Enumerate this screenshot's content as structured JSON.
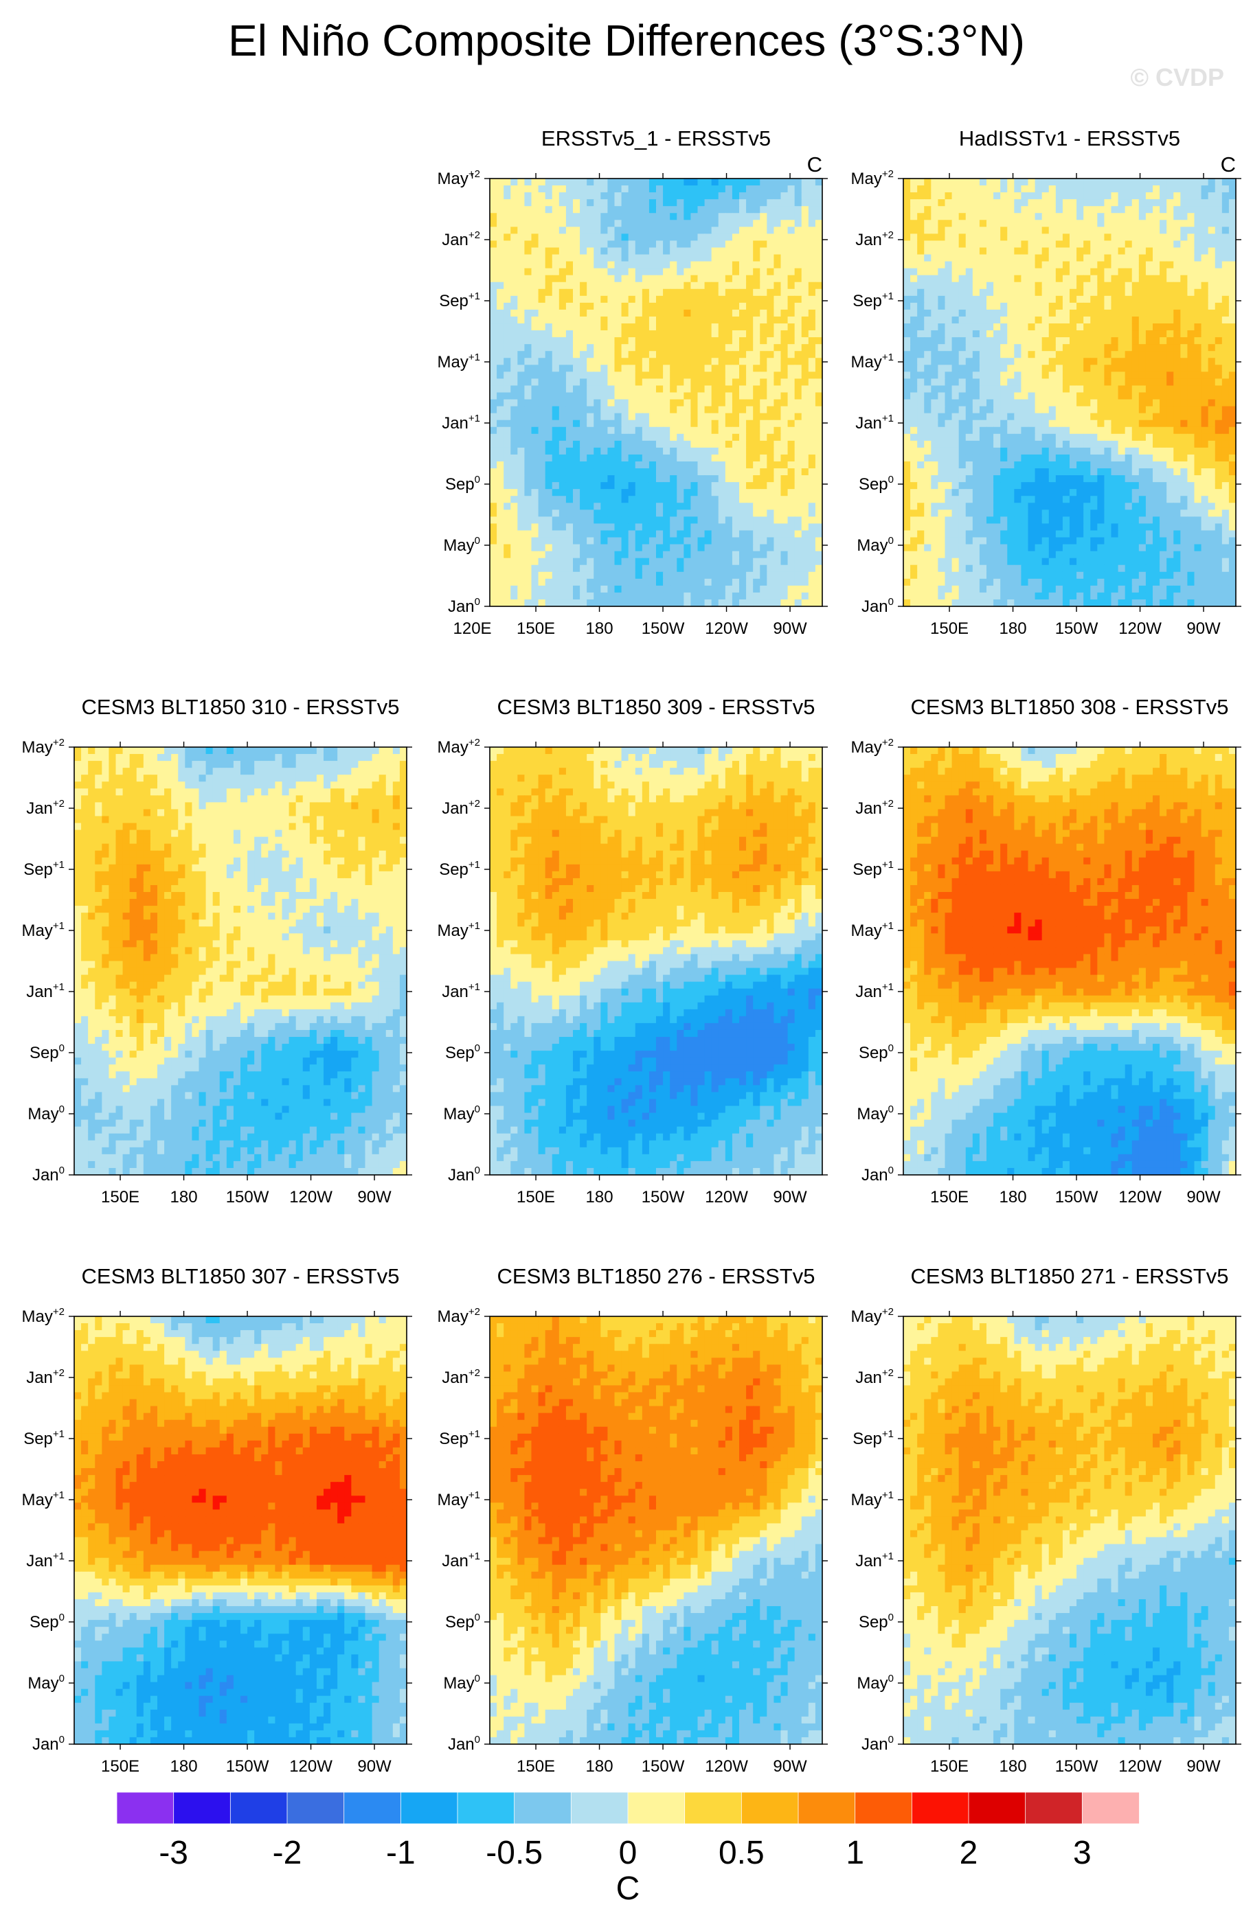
{
  "title": "El Niño Composite Differences (3°S:3°N)",
  "watermark": "© CVDP",
  "chart_data": {
    "type": "heatmap",
    "description_units": "C",
    "panels": [
      {
        "title": "ERSSTv5_1 - ERSSTv5",
        "units": "C",
        "xticks": [
          "120E",
          "150E",
          "180",
          "150W",
          "120W",
          "90W"
        ],
        "field": [
          [
            0.1,
            -0.1,
            -0.3,
            -0.8,
            -0.6,
            -0.2
          ],
          [
            0.2,
            0.2,
            -0.4,
            -0.3,
            0.2,
            0.1
          ],
          [
            -0.1,
            0.3,
            0.2,
            0.4,
            0.3,
            0.2
          ],
          [
            -0.2,
            -0.3,
            0.3,
            0.4,
            0.2,
            0.3
          ],
          [
            -0.2,
            -0.5,
            -0.2,
            0.2,
            0.3,
            0.1
          ],
          [
            0.2,
            -0.6,
            -0.8,
            -0.5,
            0.3,
            0.2
          ],
          [
            0.3,
            -0.1,
            -0.5,
            -0.5,
            -0.3,
            -0.1
          ],
          [
            0.1,
            -0.1,
            -0.4,
            -0.3,
            -0.2,
            0.2
          ]
        ]
      },
      {
        "title": "HadISSTv1 - ERSSTv5",
        "units": "C",
        "xticks": [
          "150E",
          "180",
          "150W",
          "120W",
          "90W"
        ],
        "field": [
          [
            0.3,
            0.1,
            -0.1,
            -0.2,
            -0.1,
            -0.3
          ],
          [
            0.3,
            0.2,
            0.2,
            0.2,
            0.1,
            -0.2
          ],
          [
            -0.3,
            -0.1,
            0.2,
            0.3,
            0.4,
            0.2
          ],
          [
            -0.3,
            -0.3,
            0.2,
            0.5,
            0.7,
            0.4
          ],
          [
            -0.1,
            -0.3,
            -0.1,
            0.3,
            0.6,
            0.9
          ],
          [
            0.4,
            -0.3,
            -0.9,
            -0.8,
            -0.2,
            0.4
          ],
          [
            0.3,
            -0.2,
            -0.8,
            -0.7,
            -0.5,
            -0.3
          ],
          [
            0.2,
            -0.1,
            -0.4,
            -0.5,
            -0.5,
            -0.3
          ]
        ]
      },
      {
        "title": "CESM3 BLT1850 310 - ERSSTv5",
        "units": "",
        "xticks": [
          "150E",
          "180",
          "150W",
          "120W",
          "90W"
        ],
        "field": [
          [
            0.2,
            0.2,
            -0.5,
            -0.4,
            -0.3,
            0.1
          ],
          [
            0.3,
            0.4,
            0.1,
            0.2,
            0.4,
            0.5
          ],
          [
            0.3,
            0.8,
            0.2,
            -0.2,
            0.3,
            0.2
          ],
          [
            0.2,
            0.9,
            0.3,
            0.1,
            -0.2,
            0.1
          ],
          [
            0.1,
            0.6,
            0.2,
            0.3,
            0.3,
            -0.3
          ],
          [
            -0.2,
            0.2,
            -0.3,
            -0.6,
            -0.9,
            -0.2
          ],
          [
            -0.3,
            -0.2,
            -0.5,
            -0.7,
            -0.6,
            -0.3
          ],
          [
            -0.1,
            -0.3,
            -0.5,
            -0.4,
            -0.3,
            0.1
          ]
        ]
      },
      {
        "title": "CESM3 BLT1850 309 - ERSSTv5",
        "units": "",
        "xticks": [
          "150E",
          "180",
          "150W",
          "120W",
          "90W"
        ],
        "field": [
          [
            0.3,
            0.4,
            0.0,
            -0.3,
            0.2,
            0.1
          ],
          [
            0.4,
            0.6,
            0.3,
            0.4,
            0.7,
            0.5
          ],
          [
            0.3,
            0.8,
            0.6,
            0.5,
            0.8,
            0.4
          ],
          [
            0.2,
            0.7,
            0.4,
            0.2,
            0.3,
            -0.2
          ],
          [
            -0.2,
            0.1,
            -0.4,
            -0.6,
            -0.9,
            -1.0
          ],
          [
            -0.3,
            -0.6,
            -0.9,
            -1.2,
            -1.4,
            -0.6
          ],
          [
            -0.2,
            -0.7,
            -1.0,
            -0.9,
            -0.5,
            -0.3
          ],
          [
            -0.1,
            -0.5,
            -0.6,
            -0.4,
            -0.3,
            -0.1
          ]
        ]
      },
      {
        "title": "CESM3 BLT1850 308 - ERSSTv5",
        "units": "",
        "xticks": [
          "150E",
          "180",
          "150W",
          "120W",
          "90W"
        ],
        "field": [
          [
            0.4,
            0.5,
            -0.3,
            0.2,
            0.4,
            0.2
          ],
          [
            0.6,
            0.9,
            0.6,
            0.7,
            0.8,
            0.6
          ],
          [
            0.7,
            1.1,
            1.0,
            0.9,
            1.2,
            0.6
          ],
          [
            0.6,
            1.3,
            1.6,
            1.1,
            1.0,
            0.9
          ],
          [
            0.4,
            0.9,
            0.7,
            0.8,
            0.6,
            1.0
          ],
          [
            0.2,
            0.3,
            -0.4,
            -0.6,
            -0.5,
            0.2
          ],
          [
            0.1,
            -0.3,
            -0.8,
            -0.9,
            -1.1,
            -0.3
          ],
          [
            0.0,
            -0.6,
            -0.7,
            -0.9,
            -1.3,
            0.1
          ]
        ]
      },
      {
        "title": "CESM3 BLT1850 307 - ERSSTv5",
        "units": "",
        "xticks": [
          "150E",
          "180",
          "150W",
          "120W",
          "90W"
        ],
        "field": [
          [
            0.2,
            0.1,
            -0.6,
            -0.4,
            -0.2,
            0.2
          ],
          [
            0.4,
            0.6,
            0.2,
            0.3,
            0.4,
            0.3
          ],
          [
            0.6,
            0.9,
            0.9,
            1.0,
            1.1,
            0.9
          ],
          [
            0.7,
            1.2,
            1.6,
            1.1,
            1.7,
            1.0
          ],
          [
            0.3,
            0.8,
            0.9,
            0.9,
            1.1,
            1.2
          ],
          [
            -0.2,
            -0.3,
            -0.8,
            -0.7,
            -0.9,
            -0.2
          ],
          [
            -0.4,
            -0.8,
            -1.0,
            -0.9,
            -0.7,
            -0.3
          ],
          [
            -0.3,
            -0.7,
            -0.9,
            -0.8,
            -0.7,
            -0.2
          ]
        ]
      },
      {
        "title": "CESM3 BLT1850 276 - ERSSTv5",
        "units": "",
        "xticks": [
          "150E",
          "180",
          "150W",
          "120W",
          "90W"
        ],
        "field": [
          [
            0.5,
            0.7,
            0.3,
            0.4,
            0.5,
            0.3
          ],
          [
            0.6,
            0.9,
            0.7,
            0.8,
            0.9,
            0.4
          ],
          [
            0.8,
            1.2,
            0.9,
            0.8,
            1.1,
            0.5
          ],
          [
            0.8,
            1.2,
            1.0,
            0.9,
            0.8,
            -0.1
          ],
          [
            0.4,
            1.0,
            0.8,
            0.5,
            -0.2,
            -0.3
          ],
          [
            0.2,
            0.6,
            0.1,
            -0.4,
            -0.6,
            -0.4
          ],
          [
            0.0,
            0.2,
            -0.4,
            -0.7,
            -0.6,
            -0.3
          ],
          [
            0.0,
            -0.2,
            -0.5,
            -0.5,
            -0.4,
            -0.2
          ]
        ]
      },
      {
        "title": "CESM3 BLT1850 271 - ERSSTv5",
        "units": "",
        "xticks": [
          "150E",
          "180",
          "150W",
          "120W",
          "90W"
        ],
        "field": [
          [
            0.1,
            0.3,
            -0.3,
            -0.2,
            0.2,
            0.1
          ],
          [
            0.3,
            0.6,
            0.3,
            0.4,
            0.5,
            0.2
          ],
          [
            0.4,
            0.9,
            0.7,
            0.5,
            0.8,
            0.3
          ],
          [
            0.4,
            0.8,
            0.6,
            0.4,
            0.4,
            0.0
          ],
          [
            0.3,
            0.7,
            0.3,
            -0.1,
            -0.3,
            -0.4
          ],
          [
            0.1,
            0.4,
            -0.2,
            -0.5,
            -0.6,
            -0.3
          ],
          [
            0.0,
            0.0,
            -0.4,
            -0.7,
            -0.8,
            -0.3
          ],
          [
            -0.1,
            -0.2,
            -0.3,
            -0.4,
            -0.3,
            -0.1
          ]
        ]
      }
    ],
    "yticks": [
      {
        "label": "May",
        "sup": "+2"
      },
      {
        "label": "Jan",
        "sup": "+2"
      },
      {
        "label": "Sep",
        "sup": "+1"
      },
      {
        "label": "May",
        "sup": "+1"
      },
      {
        "label": "Jan",
        "sup": "+1"
      },
      {
        "label": "Sep",
        "sup": "0"
      },
      {
        "label": "May",
        "sup": "0"
      },
      {
        "label": "Jan",
        "sup": "0"
      }
    ],
    "colorbar": {
      "levels": [
        -3,
        -2.5,
        -2,
        -1.5,
        -1,
        -0.75,
        -0.5,
        -0.25,
        0,
        0.25,
        0.5,
        0.75,
        1,
        1.5,
        2,
        2.5,
        3
      ],
      "colors": [
        "#8b30f0",
        "#2c10ee",
        "#1f3fe6",
        "#3a6ee0",
        "#2b8af2",
        "#16a6f4",
        "#2ec2f6",
        "#7cc8ee",
        "#b3e0f0",
        "#fff59a",
        "#fdd83c",
        "#fdb515",
        "#fc8c0c",
        "#fd5c06",
        "#fc1203",
        "#dd0000",
        "#d02428",
        "#fdb0b0"
      ],
      "tick_labels": [
        "-3",
        "-2",
        "-1",
        "-0.5",
        "0",
        "0.5",
        "1",
        "2",
        "3"
      ],
      "title": "C"
    }
  }
}
